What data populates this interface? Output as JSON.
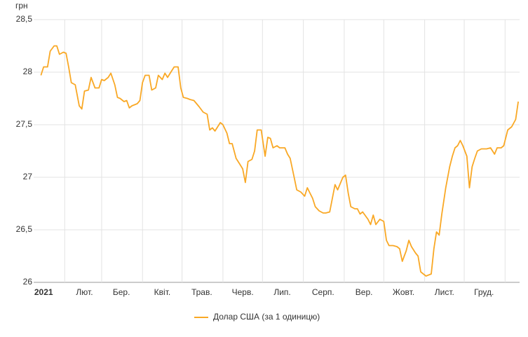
{
  "chart_data": {
    "type": "line",
    "ylabel": "грн",
    "x": [
      13,
      15,
      18,
      20,
      23,
      25,
      27,
      30,
      32,
      34,
      36,
      39,
      42,
      44,
      46,
      49,
      51,
      54,
      57,
      59,
      61,
      64,
      66,
      69,
      71,
      73,
      76,
      78,
      80,
      82,
      86,
      88,
      90,
      92,
      95,
      97,
      100,
      102,
      105,
      107,
      109,
      111,
      114,
      117,
      119,
      121,
      124,
      126,
      129,
      133,
      136,
      139,
      141,
      143,
      145,
      149,
      151,
      154,
      156,
      158,
      161,
      164,
      166,
      168,
      170,
      173,
      175,
      177,
      180,
      183,
      185,
      187,
      189,
      192,
      194,
      198,
      200,
      202,
      205,
      207,
      210,
      213,
      215,
      217,
      219,
      221,
      224,
      227,
      229,
      232,
      234,
      236,
      238,
      242,
      244,
      246,
      248,
      251,
      253,
      255,
      257,
      261,
      263,
      265,
      267,
      270,
      273,
      275,
      277,
      280,
      283,
      285,
      287,
      290,
      292,
      294,
      297,
      299,
      301,
      303,
      305,
      309,
      311,
      313,
      315,
      317,
      320,
      323,
      325,
      327,
      329,
      331,
      333,
      336,
      338,
      340,
      342,
      344,
      347,
      351,
      354,
      357,
      359,
      362,
      364,
      367,
      370,
      373,
      375
    ],
    "series": [
      {
        "name": "Долар США (за 1 одиницю)",
        "color": "#f9a825",
        "values": [
          27.97,
          28.05,
          28.05,
          28.2,
          28.25,
          28.25,
          28.17,
          28.19,
          28.18,
          28.05,
          27.9,
          27.88,
          27.68,
          27.65,
          27.82,
          27.83,
          27.95,
          27.85,
          27.85,
          27.93,
          27.92,
          27.95,
          27.99,
          27.88,
          27.76,
          27.75,
          27.72,
          27.73,
          27.66,
          27.68,
          27.7,
          27.73,
          27.9,
          27.97,
          27.97,
          27.83,
          27.85,
          27.97,
          27.93,
          27.99,
          27.95,
          27.99,
          28.05,
          28.05,
          27.85,
          27.76,
          27.75,
          27.74,
          27.73,
          27.67,
          27.62,
          27.6,
          27.45,
          27.47,
          27.44,
          27.52,
          27.5,
          27.42,
          27.32,
          27.32,
          27.18,
          27.12,
          27.08,
          26.95,
          27.15,
          27.17,
          27.25,
          27.45,
          27.45,
          27.2,
          27.38,
          27.37,
          27.28,
          27.3,
          27.28,
          27.28,
          27.22,
          27.18,
          27.0,
          26.88,
          26.86,
          26.82,
          26.9,
          26.85,
          26.8,
          26.72,
          26.68,
          26.66,
          26.66,
          26.67,
          26.8,
          26.93,
          26.88,
          27.0,
          27.02,
          26.85,
          26.72,
          26.7,
          26.7,
          26.65,
          26.67,
          26.6,
          26.55,
          26.64,
          26.55,
          26.6,
          26.58,
          26.4,
          26.35,
          26.35,
          26.34,
          26.32,
          26.2,
          26.3,
          26.4,
          26.34,
          26.28,
          26.25,
          26.1,
          26.08,
          26.06,
          26.08,
          26.32,
          26.48,
          26.45,
          26.65,
          26.9,
          27.1,
          27.2,
          27.28,
          27.3,
          27.35,
          27.3,
          27.2,
          26.9,
          27.1,
          27.18,
          27.25,
          27.27,
          27.27,
          27.28,
          27.22,
          27.28,
          27.28,
          27.3,
          27.45,
          27.48,
          27.55,
          27.72
        ]
      }
    ],
    "xlim": [
      0,
      376
    ],
    "xticks": [
      {
        "value": 0,
        "label": "2021"
      },
      {
        "value": 31,
        "label": "Лют."
      },
      {
        "value": 59,
        "label": "Бер."
      },
      {
        "value": 90,
        "label": "Квіт."
      },
      {
        "value": 120,
        "label": "Трав."
      },
      {
        "value": 151,
        "label": "Черв."
      },
      {
        "value": 181,
        "label": "Лип."
      },
      {
        "value": 212,
        "label": "Серп."
      },
      {
        "value": 243,
        "label": "Вер."
      },
      {
        "value": 273,
        "label": "Жовт."
      },
      {
        "value": 304,
        "label": "Лист."
      },
      {
        "value": 334,
        "label": "Груд."
      },
      {
        "value": 365,
        "label": ""
      }
    ],
    "ylim": [
      26,
      28.5
    ],
    "yticks": [
      {
        "value": 26,
        "label": "26"
      },
      {
        "value": 26.5,
        "label": "26,5"
      },
      {
        "value": 27,
        "label": "27"
      },
      {
        "value": 27.5,
        "label": "27,5"
      },
      {
        "value": 28,
        "label": "28"
      },
      {
        "value": 28.5,
        "label": "28,5"
      }
    ],
    "grid": true,
    "legend": "bottom"
  }
}
